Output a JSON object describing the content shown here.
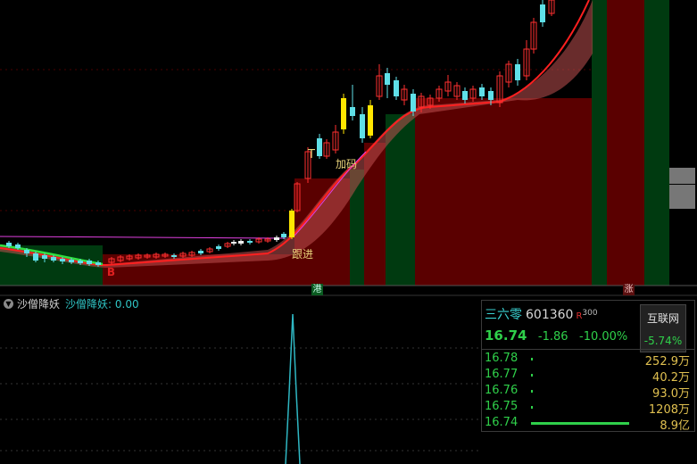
{
  "indicator": {
    "name": "沙僧降妖",
    "label": "沙僧降妖:",
    "value": "0.00"
  },
  "annotations": {
    "b_marker": "B",
    "follow": "跟进",
    "add": "加码",
    "t_marker": "T",
    "hk_tag": "港",
    "up_tag": "涨"
  },
  "quote": {
    "name": "三六零",
    "code": "601360",
    "r_badge": "R",
    "r_num": "300",
    "price": "16.74",
    "change": "-1.86",
    "change_pct": "-10.00%",
    "sector_name": "互联网",
    "sector_change": "-5.74%",
    "book": [
      {
        "price": "16.78",
        "volume": "252.9万",
        "bar_pct": 0.01
      },
      {
        "price": "16.77",
        "volume": "40.2万",
        "bar_pct": 0.01
      },
      {
        "price": "16.76",
        "volume": "93.0万",
        "bar_pct": 0.01
      },
      {
        "price": "16.75",
        "volume": "1208万",
        "bar_pct": 0.01
      },
      {
        "price": "16.74",
        "volume": "8.9亿",
        "bar_pct": 1.0
      }
    ]
  },
  "colors": {
    "up": "#e02020",
    "down": "#40e0e0",
    "zone_red": "#5a0000",
    "zone_green": "#003a10",
    "line_cyan": "#2fb8c4"
  }
}
